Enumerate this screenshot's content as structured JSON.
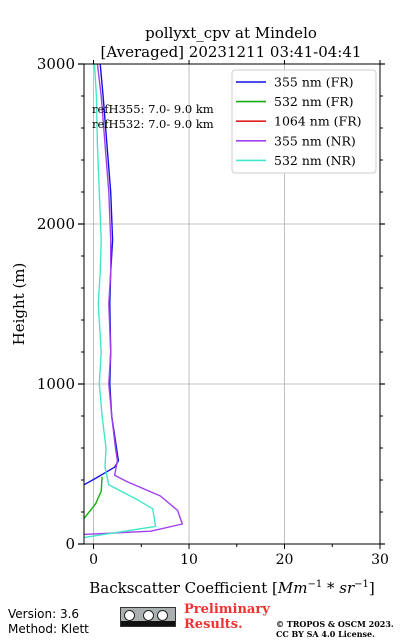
{
  "chart_data": {
    "type": "line",
    "title_line1": "pollyxt_cpv at Mindelo",
    "title_line2": "[Averaged] 20231211 03:41-04:41",
    "xlabel_text": "Backscatter Coefficient [",
    "xlabel_units_mm": "Mm",
    "xlabel_units_sup1": "−1",
    "xlabel_units_mid": " * ",
    "xlabel_units_sr": "sr",
    "xlabel_units_sup2": "−1",
    "xlabel_close": "]",
    "ylabel": "Height (m)",
    "xlim": [
      -1,
      30
    ],
    "ylim": [
      0,
      3000
    ],
    "x_ticks": [
      0,
      10,
      20,
      30
    ],
    "y_ticks": [
      0,
      1000,
      2000,
      3000
    ],
    "x_tick_labels": [
      "0",
      "10",
      "20",
      "30"
    ],
    "y_tick_labels": [
      "0",
      "1000",
      "2000",
      "3000"
    ],
    "grid": true,
    "legend_position": "top-right",
    "annotations": [
      "refH355:  7.0- 9.0 km",
      "refH532:  7.0- 9.0 km"
    ],
    "series": [
      {
        "name": "355 nm (FR)",
        "color": "#1010e0",
        "points": [
          [
            -1.0,
            370
          ],
          [
            0.2,
            410
          ],
          [
            1.2,
            445
          ],
          [
            2.2,
            480
          ],
          [
            2.6,
            520
          ],
          [
            2.4,
            600
          ],
          [
            1.9,
            800
          ],
          [
            1.7,
            1000
          ],
          [
            1.8,
            1200
          ],
          [
            1.7,
            1500
          ],
          [
            1.8,
            1700
          ],
          [
            2.0,
            1900
          ],
          [
            1.8,
            2200
          ],
          [
            1.4,
            2500
          ],
          [
            1.0,
            2800
          ],
          [
            0.7,
            3000
          ]
        ]
      },
      {
        "name": "532 nm (FR)",
        "color": "#10b010",
        "points": [
          [
            -1.0,
            160
          ],
          [
            0.2,
            250
          ],
          [
            0.8,
            330
          ],
          [
            0.9,
            420
          ]
        ]
      },
      {
        "name": "1064 nm (FR)",
        "color": "#dd2222",
        "points": []
      },
      {
        "name": "355 nm (NR)",
        "color": "#a040ee",
        "points": [
          [
            -1.0,
            60
          ],
          [
            6.0,
            80
          ],
          [
            9.3,
            125
          ],
          [
            8.8,
            210
          ],
          [
            7.0,
            300
          ],
          [
            3.5,
            390
          ],
          [
            2.2,
            430
          ],
          [
            2.5,
            520
          ],
          [
            2.3,
            600
          ],
          [
            1.9,
            800
          ],
          [
            1.6,
            1000
          ],
          [
            1.8,
            1200
          ],
          [
            1.6,
            1500
          ],
          [
            1.8,
            1700
          ],
          [
            1.8,
            1900
          ],
          [
            1.6,
            2200
          ],
          [
            1.2,
            2500
          ],
          [
            0.8,
            2800
          ],
          [
            0.4,
            3000
          ]
        ]
      },
      {
        "name": "532 nm (NR)",
        "color": "#40e8c8",
        "points": [
          [
            -1.0,
            40
          ],
          [
            6.5,
            110
          ],
          [
            6.2,
            220
          ],
          [
            4.5,
            280
          ],
          [
            1.6,
            370
          ],
          [
            1.2,
            480
          ],
          [
            1.3,
            600
          ],
          [
            0.9,
            800
          ],
          [
            0.6,
            1000
          ],
          [
            0.8,
            1200
          ],
          [
            0.5,
            1500
          ],
          [
            0.7,
            1700
          ],
          [
            0.8,
            1900
          ],
          [
            0.6,
            2200
          ],
          [
            0.4,
            2500
          ],
          [
            0.3,
            2800
          ],
          [
            0.1,
            3000
          ]
        ]
      }
    ]
  },
  "footer": {
    "version": "Version: 3.6",
    "method": "Method: Klett",
    "preliminary_line1": "Preliminary",
    "preliminary_line2": "Results.",
    "copyright_line1": "© TROPOS & OSCM 2023.",
    "copyright_line2": "CC BY SA 4.0 License.",
    "license_badge": "CC BY SA"
  }
}
